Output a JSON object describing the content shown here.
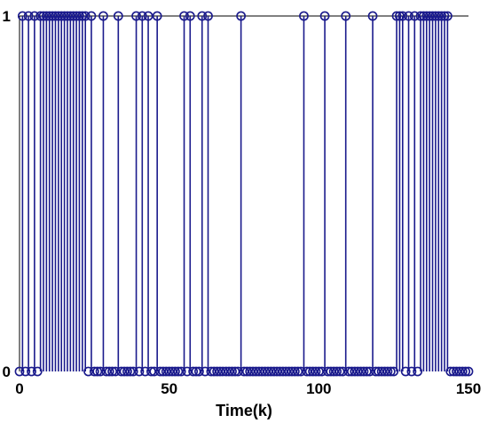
{
  "chart_data": {
    "type": "stem",
    "title": "",
    "xlabel": "Time(k)",
    "ylabel": "",
    "xlim": [
      0,
      150
    ],
    "ylim": [
      0,
      1
    ],
    "xticks": [
      "0",
      "50",
      "100",
      "150"
    ],
    "yticks": [
      "0",
      "1"
    ],
    "grid": false,
    "series": [
      {
        "color": "#1a1a8c",
        "marker": "circle-open",
        "x": [
          0,
          1,
          2,
          3,
          4,
          5,
          6,
          7,
          8,
          9,
          10,
          11,
          12,
          13,
          14,
          15,
          16,
          17,
          18,
          19,
          20,
          21,
          22,
          23,
          24,
          25,
          26,
          27,
          28,
          29,
          30,
          31,
          32,
          33,
          34,
          35,
          36,
          37,
          38,
          39,
          40,
          41,
          42,
          43,
          44,
          45,
          46,
          47,
          48,
          49,
          50,
          51,
          52,
          53,
          54,
          55,
          56,
          57,
          58,
          59,
          60,
          61,
          62,
          63,
          64,
          65,
          66,
          67,
          68,
          69,
          70,
          71,
          72,
          73,
          74,
          75,
          76,
          77,
          78,
          79,
          80,
          81,
          82,
          83,
          84,
          85,
          86,
          87,
          88,
          89,
          90,
          91,
          92,
          93,
          94,
          95,
          96,
          97,
          98,
          99,
          100,
          101,
          102,
          103,
          104,
          105,
          106,
          107,
          108,
          109,
          110,
          111,
          112,
          113,
          114,
          115,
          116,
          117,
          118,
          119,
          120,
          121,
          122,
          123,
          124,
          125,
          126,
          127,
          128,
          129,
          130,
          131,
          132,
          133,
          134,
          135,
          136,
          137,
          138,
          139,
          140,
          141,
          142,
          143,
          144,
          145,
          146,
          147,
          148,
          149,
          150
        ],
        "y": [
          0,
          1,
          0,
          1,
          0,
          1,
          0,
          1,
          1,
          1,
          1,
          1,
          1,
          1,
          1,
          1,
          1,
          1,
          1,
          1,
          1,
          1,
          1,
          0,
          1,
          0,
          0,
          0,
          1,
          0,
          0,
          0,
          0,
          1,
          0,
          0,
          0,
          0,
          0,
          1,
          0,
          1,
          0,
          1,
          0,
          0,
          1,
          0,
          0,
          0,
          0,
          0,
          0,
          0,
          0,
          1,
          0,
          1,
          0,
          0,
          0,
          1,
          0,
          1,
          0,
          0,
          0,
          0,
          0,
          0,
          0,
          0,
          0,
          0,
          1,
          0,
          0,
          0,
          0,
          0,
          0,
          0,
          0,
          0,
          0,
          0,
          0,
          0,
          0,
          0,
          0,
          0,
          0,
          0,
          0,
          1,
          0,
          0,
          0,
          0,
          0,
          0,
          1,
          0,
          0,
          0,
          0,
          0,
          0,
          1,
          0,
          0,
          0,
          0,
          0,
          0,
          0,
          0,
          1,
          0,
          0,
          0,
          0,
          0,
          0,
          0,
          1,
          1,
          1,
          0,
          1,
          0,
          1,
          0,
          1,
          1,
          1,
          1,
          1,
          1,
          1,
          1,
          1,
          1,
          0,
          0,
          0,
          0,
          0,
          0,
          0
        ]
      }
    ]
  }
}
